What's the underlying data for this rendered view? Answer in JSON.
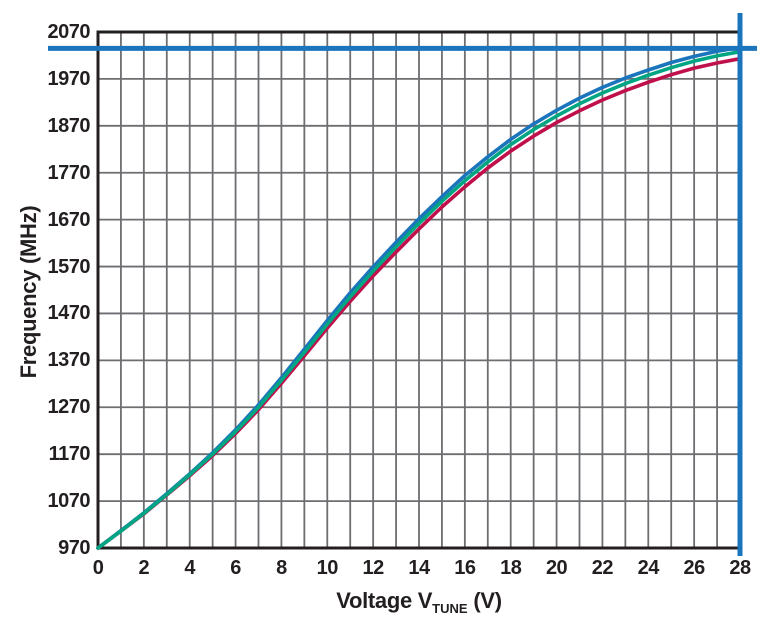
{
  "chart_data": {
    "type": "line",
    "title": "",
    "ylabel": "Frequency (MHz)",
    "xlabel": {
      "prefix": "Voltage V",
      "sub": "TUNE",
      "suffix": " (V)"
    },
    "x_range": [
      0,
      28
    ],
    "y_range": [
      970,
      2070
    ],
    "x_ticks": [
      0,
      2,
      4,
      6,
      8,
      10,
      12,
      14,
      16,
      18,
      20,
      22,
      24,
      26,
      28
    ],
    "y_ticks": [
      970,
      1070,
      1170,
      1270,
      1370,
      1470,
      1570,
      1670,
      1770,
      1870,
      1970,
      2070
    ],
    "x_grid_step": 1,
    "y_grid_step": 100,
    "grid_on": true,
    "legend": "none",
    "x": [
      0,
      1,
      2,
      3,
      4,
      5,
      6,
      7,
      8,
      9,
      10,
      11,
      12,
      13,
      14,
      15,
      16,
      17,
      18,
      19,
      20,
      21,
      22,
      23,
      24,
      25,
      26,
      27,
      28
    ],
    "series": [
      {
        "name": "blue",
        "color": "#1b75bc",
        "values": [
          970,
          1007,
          1045,
          1086,
          1128,
          1173,
          1222,
          1275,
          1333,
          1394,
          1455,
          1514,
          1569,
          1622,
          1672,
          1719,
          1764,
          1804,
          1841,
          1874,
          1903,
          1929,
          1952,
          1972,
          1989,
          2005,
          2018,
          2029,
          2037
        ]
      },
      {
        "name": "green",
        "color": "#00a583",
        "values": [
          970,
          1006,
          1044,
          1084,
          1126,
          1170,
          1218,
          1270,
          1327,
          1387,
          1447,
          1505,
          1560,
          1612,
          1662,
          1709,
          1753,
          1793,
          1830,
          1862,
          1891,
          1917,
          1940,
          1960,
          1978,
          1994,
          2008,
          2019,
          2028
        ]
      },
      {
        "name": "red",
        "color": "#bf104c",
        "values": [
          970,
          1006,
          1043,
          1083,
          1124,
          1167,
          1214,
          1265,
          1321,
          1380,
          1439,
          1496,
          1550,
          1601,
          1650,
          1697,
          1740,
          1780,
          1816,
          1848,
          1877,
          1902,
          1925,
          1945,
          1963,
          1979,
          1993,
          2004,
          2013
        ]
      }
    ],
    "reference_lines": {
      "horizontal_mhz": 2035,
      "vertical_v": 28,
      "color": "#1b75bc"
    },
    "colors": {
      "grid": "#6d6e71",
      "axis_border": "#231f20",
      "text": "#231f20",
      "background": "#ffffff"
    }
  }
}
